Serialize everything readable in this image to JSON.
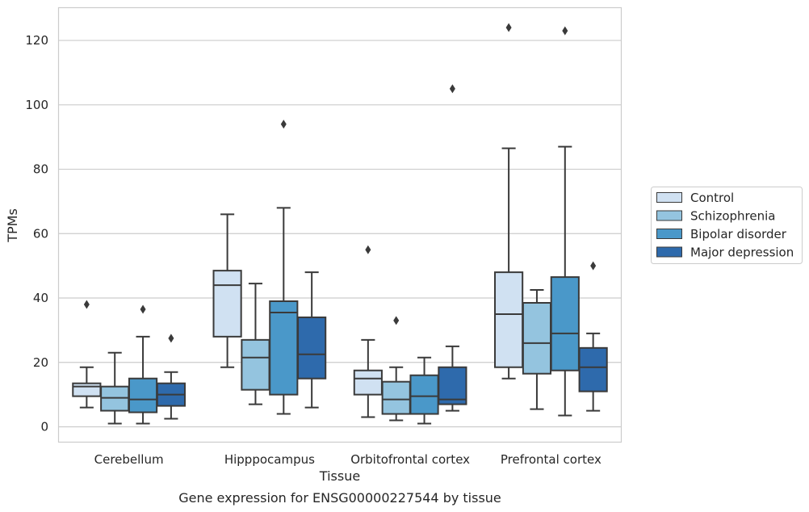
{
  "chart_data": {
    "type": "box",
    "caption": "Gene expression for ENSG00000227544 by tissue",
    "xlabel": "Tissue",
    "ylabel": "TPMs",
    "ylim": [
      -5,
      130
    ],
    "yticks": [
      0,
      20,
      40,
      60,
      80,
      100,
      120
    ],
    "grid": "horizontal",
    "legend_placement": "right",
    "categories": [
      "Cerebellum",
      "Hipppocampus",
      "Orbitofrontal cortex",
      "Prefrontal cortex"
    ],
    "series": [
      {
        "name": "Control",
        "color": "#d0e1f2",
        "boxes": [
          {
            "whisker_low": 6,
            "q1": 9.5,
            "median": 12.5,
            "q3": 13.5,
            "whisker_high": 18.5,
            "outliers": [
              38
            ]
          },
          {
            "whisker_low": 18.5,
            "q1": 28,
            "median": 44,
            "q3": 48.5,
            "whisker_high": 66,
            "outliers": []
          },
          {
            "whisker_low": 3,
            "q1": 10,
            "median": 15,
            "q3": 17.5,
            "whisker_high": 27,
            "outliers": [
              55
            ]
          },
          {
            "whisker_low": 15,
            "q1": 18.5,
            "median": 35,
            "q3": 48,
            "whisker_high": 86.5,
            "outliers": [
              124
            ]
          }
        ]
      },
      {
        "name": "Schizophrenia",
        "color": "#94c4df",
        "boxes": [
          {
            "whisker_low": 1,
            "q1": 5,
            "median": 9,
            "q3": 12.5,
            "whisker_high": 23,
            "outliers": []
          },
          {
            "whisker_low": 7,
            "q1": 11.5,
            "median": 21.5,
            "q3": 27,
            "whisker_high": 44.5,
            "outliers": []
          },
          {
            "whisker_low": 2,
            "q1": 4,
            "median": 8.5,
            "q3": 14,
            "whisker_high": 18.5,
            "outliers": [
              33
            ]
          },
          {
            "whisker_low": 5.5,
            "q1": 16.5,
            "median": 26,
            "q3": 38.5,
            "whisker_high": 42.5,
            "outliers": []
          }
        ]
      },
      {
        "name": "Bipolar disorder",
        "color": "#4a98c9",
        "boxes": [
          {
            "whisker_low": 1,
            "q1": 4.5,
            "median": 8.5,
            "q3": 15,
            "whisker_high": 28,
            "outliers": [
              36.5
            ]
          },
          {
            "whisker_low": 4,
            "q1": 10,
            "median": 35.5,
            "q3": 39,
            "whisker_high": 68,
            "outliers": [
              94
            ]
          },
          {
            "whisker_low": 1,
            "q1": 4,
            "median": 9.5,
            "q3": 16,
            "whisker_high": 21.5,
            "outliers": []
          },
          {
            "whisker_low": 3.5,
            "q1": 17.5,
            "median": 29,
            "q3": 46.5,
            "whisker_high": 87,
            "outliers": [
              123
            ]
          }
        ]
      },
      {
        "name": "Major depression",
        "color": "#2e6aac",
        "boxes": [
          {
            "whisker_low": 2.5,
            "q1": 6.5,
            "median": 10,
            "q3": 13.5,
            "whisker_high": 17,
            "outliers": [
              27.5
            ]
          },
          {
            "whisker_low": 6,
            "q1": 15,
            "median": 22.5,
            "q3": 34,
            "whisker_high": 48,
            "outliers": []
          },
          {
            "whisker_low": 5,
            "q1": 7,
            "median": 8.5,
            "q3": 18.5,
            "whisker_high": 25,
            "outliers": [
              105
            ]
          },
          {
            "whisker_low": 5,
            "q1": 11,
            "median": 18.5,
            "q3": 24.5,
            "whisker_high": 29,
            "outliers": [
              50
            ]
          }
        ]
      }
    ]
  }
}
